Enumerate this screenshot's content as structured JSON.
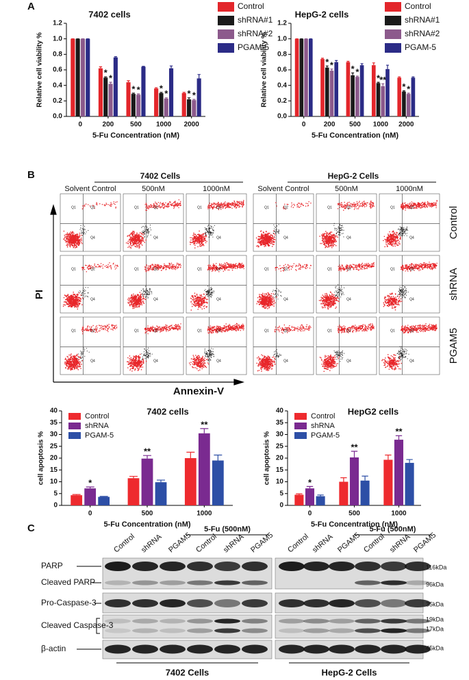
{
  "panel_labels": [
    "A",
    "B",
    "C"
  ],
  "chart_data": [
    {
      "type": "bar",
      "title": "7402 cells",
      "xlabel": "5-Fu Concentration (nM)",
      "ylabel": "Relative cell viability %",
      "legend": "right",
      "categories": [
        "0",
        "200",
        "500",
        "1000",
        "2000"
      ],
      "series": [
        {
          "name": "Control",
          "color": "#e3262b",
          "values": [
            1.0,
            0.62,
            0.44,
            0.36,
            0.3
          ],
          "errors": [
            0,
            0.02,
            0.02,
            0.01,
            0.01
          ]
        },
        {
          "name": "shRNA#1",
          "color": "#1a1a1a",
          "values": [
            1.0,
            0.5,
            0.29,
            0.3,
            0.22
          ],
          "errors": [
            0,
            0.01,
            0.01,
            0.01,
            0.02
          ],
          "significance": [
            null,
            "*",
            "*",
            "*",
            "*"
          ]
        },
        {
          "name": "shRNA#2",
          "color": "#8c5a8c",
          "values": [
            1.0,
            0.42,
            0.28,
            0.23,
            0.21
          ],
          "errors": [
            0,
            0.02,
            0.01,
            0.01,
            0.01
          ],
          "significance": [
            null,
            "*",
            "*",
            "*",
            "*"
          ]
        },
        {
          "name": "PGAM-5",
          "color": "#2b2b86",
          "values": [
            1.0,
            0.76,
            0.64,
            0.62,
            0.49
          ],
          "errors": [
            0,
            0.01,
            0.005,
            0.03,
            0.05
          ]
        }
      ],
      "ylim": [
        0,
        1.2
      ],
      "yticks": [
        {
          "value": 0,
          "label": "0.0"
        },
        {
          "value": 0.2,
          "label": "0.2"
        },
        {
          "value": 0.4,
          "label": "0.4"
        },
        {
          "value": 0.6,
          "label": "0.6"
        },
        {
          "value": 0.8,
          "label": "0.8"
        },
        {
          "value": 1.0,
          "label": "1.0"
        },
        {
          "value": 1.2,
          "label": "1.2"
        }
      ]
    },
    {
      "type": "bar",
      "title": "HepG-2 cells",
      "xlabel": "5-Fu Concentration (nM)",
      "ylabel": "Relative cell viability %",
      "legend": "right",
      "categories": [
        "0",
        "200",
        "500",
        "1000",
        "2000"
      ],
      "series": [
        {
          "name": "Control",
          "color": "#e3262b",
          "values": [
            1.0,
            0.74,
            0.7,
            0.66,
            0.5
          ],
          "errors": [
            0,
            0.01,
            0.01,
            0.03,
            0.01
          ]
        },
        {
          "name": "shRNA#1",
          "color": "#1a1a1a",
          "values": [
            1.0,
            0.63,
            0.53,
            0.43,
            0.32
          ],
          "errors": [
            0,
            0.02,
            0.03,
            0.01,
            0.01
          ],
          "significance": [
            null,
            "*",
            "*",
            "*",
            "*"
          ]
        },
        {
          "name": "shRNA#2",
          "color": "#8c5a8c",
          "values": [
            1.0,
            0.59,
            0.51,
            0.39,
            0.29
          ],
          "errors": [
            0,
            0.02,
            0.01,
            0.03,
            0.01
          ],
          "significance": [
            null,
            "*",
            "*",
            "**",
            "*"
          ]
        },
        {
          "name": "PGAM-5",
          "color": "#2b2b86",
          "values": [
            1.0,
            0.7,
            0.66,
            0.61,
            0.5
          ],
          "errors": [
            0,
            0.02,
            0.02,
            0.05,
            0.01
          ]
        }
      ],
      "ylim": [
        0,
        1.2
      ],
      "yticks": [
        {
          "value": 0,
          "label": "0.0"
        },
        {
          "value": 0.2,
          "label": "0.2"
        },
        {
          "value": 0.4,
          "label": "0.4"
        },
        {
          "value": 0.6,
          "label": "0.6"
        },
        {
          "value": 0.8,
          "label": "0.8"
        },
        {
          "value": 1.0,
          "label": "1.0"
        },
        {
          "value": 1.2,
          "label": "1.2"
        }
      ]
    },
    {
      "type": "bar",
      "title": "7402 cells",
      "xlabel": "5-Fu Concentration (nM)",
      "ylabel": "cell apoptosis %",
      "legend": "upper left",
      "categories": [
        "0",
        "500",
        "1000"
      ],
      "series": [
        {
          "name": "Control",
          "color": "#ee2a2e",
          "values": [
            4.3,
            11.5,
            20
          ],
          "errors": [
            0.3,
            0.8,
            2.5
          ]
        },
        {
          "name": "shRNA",
          "color": "#7a2a90",
          "values": [
            7.2,
            19.8,
            30.5
          ],
          "errors": [
            0.6,
            1.3,
            2
          ],
          "significance": [
            "*",
            "**",
            "**"
          ]
        },
        {
          "name": "PGAM-5",
          "color": "#2d4fa6",
          "values": [
            3.6,
            9.8,
            19
          ],
          "errors": [
            0.2,
            0.9,
            2.3
          ]
        }
      ],
      "ylim": [
        0,
        40
      ],
      "yticks": [
        0,
        5,
        10,
        15,
        20,
        25,
        30,
        35,
        40
      ]
    },
    {
      "type": "bar",
      "title": "HepG2 cells",
      "xlabel": "5-Fu Concentration (nM)",
      "ylabel": "cell apoptosis %",
      "legend": "upper left",
      "categories": [
        "0",
        "500",
        "1000"
      ],
      "series": [
        {
          "name": "Control",
          "color": "#ee2a2e",
          "values": [
            4.5,
            10,
            19.3
          ],
          "errors": [
            0.4,
            1.7,
            2
          ]
        },
        {
          "name": "shRNA",
          "color": "#7a2a90",
          "values": [
            7.2,
            20.3,
            27.8
          ],
          "errors": [
            0.8,
            2.6,
            1.7
          ],
          "significance": [
            "*",
            "**",
            "**"
          ]
        },
        {
          "name": "PGAM-5",
          "color": "#2d4fa6",
          "values": [
            3.9,
            10.5,
            18
          ],
          "errors": [
            0.5,
            1.9,
            1.4
          ]
        }
      ],
      "ylim": [
        0,
        40
      ],
      "yticks": [
        0,
        5,
        10,
        15,
        20,
        25,
        30,
        35,
        40
      ]
    }
  ],
  "flow": {
    "groups": [
      {
        "title": "7402 Cells",
        "columns": [
          "Solvent Control",
          "500nM",
          "1000nM"
        ]
      },
      {
        "title": "HepG-2 Cells",
        "columns": [
          "Solvent Control",
          "500nM",
          "1000nM"
        ]
      }
    ],
    "rows": [
      "Control",
      "shRNA",
      "PGAM5"
    ],
    "y_axis": "PI",
    "x_axis": "Annexin-V",
    "quadrants": [
      "Q1",
      "Q2",
      "Q4"
    ]
  },
  "blot": {
    "lanes": [
      "Control",
      "shRNA",
      "PGAM5",
      "Control",
      "shRNA",
      "PGAM5"
    ],
    "treatment": "5-Fu (500nM)",
    "rows": [
      "PARP",
      "Cleaved PARP",
      "Pro-Caspase-3",
      "Cleaved Caspase-3",
      "β-actin"
    ],
    "markers": [
      "116kDa",
      "96kDa",
      "35kDa",
      "19kDa",
      "17kDa",
      "45kDa"
    ],
    "cells": [
      "7402 Cells",
      "HepG-2 Cells"
    ]
  }
}
